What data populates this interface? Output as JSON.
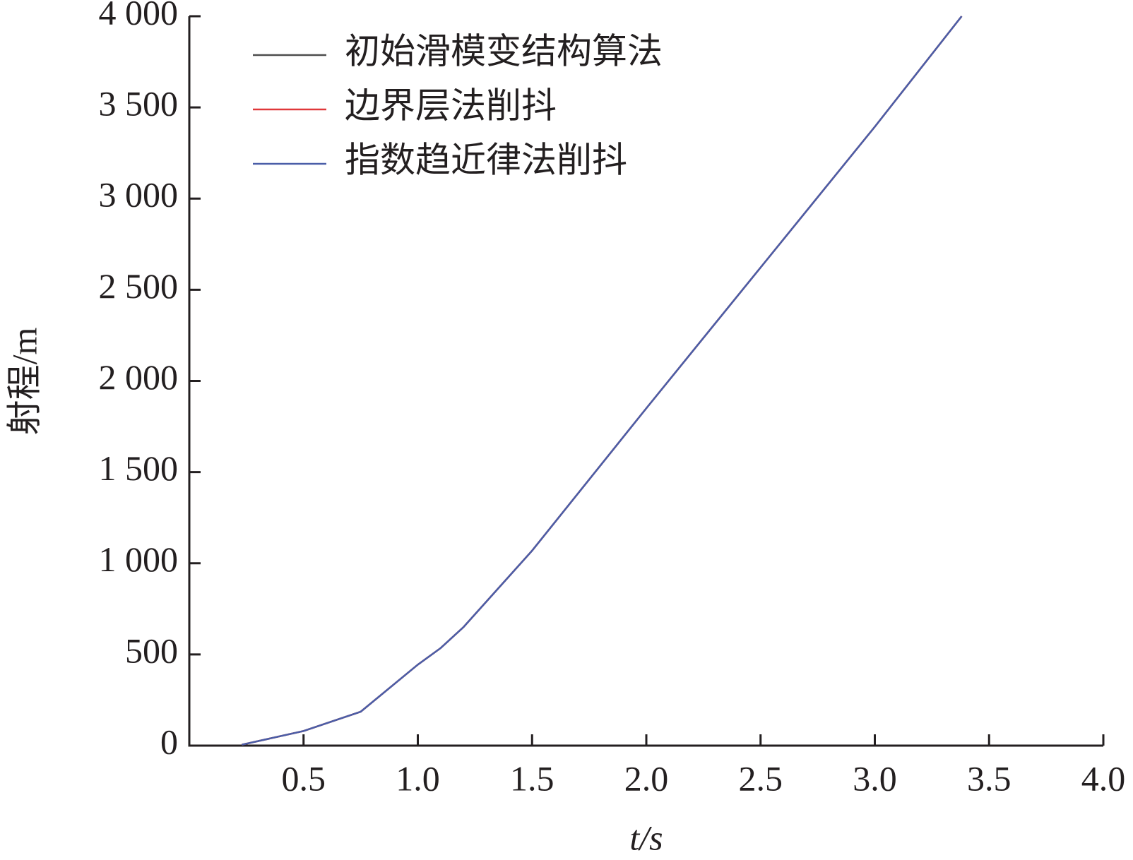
{
  "chart_data": {
    "type": "line",
    "x_label": "t/s",
    "y_label": "射程/m",
    "xlim": [
      0,
      4
    ],
    "ylim": [
      0,
      4000
    ],
    "xticks": [
      0.5,
      {
        "value": 1,
        "label": "1.0"
      },
      1.5,
      {
        "value": 2,
        "label": "2.0"
      },
      2.5,
      {
        "value": 3,
        "label": "3.0"
      },
      3.5,
      {
        "value": 4,
        "label": "4.0"
      }
    ],
    "yticks": [
      0,
      500,
      {
        "value": 1000,
        "label": "1 000"
      },
      {
        "value": 1500,
        "label": "1 500"
      },
      {
        "value": 2000,
        "label": "2 000"
      },
      {
        "value": 2500,
        "label": "2 500"
      },
      {
        "value": 3000,
        "label": "3 000"
      },
      {
        "value": 3500,
        "label": "3 500"
      },
      {
        "value": 4000,
        "label": "4 000"
      }
    ],
    "grid": false,
    "legend": "upper left",
    "x": [
      0.23,
      0.5,
      0.75,
      1.0,
      1.1,
      1.2,
      1.5,
      2.0,
      2.5,
      3.0,
      3.38
    ],
    "series": [
      {
        "name": "初始滑模变结构算法",
        "color": "#4d4d4d",
        "values": [
          5,
          80,
          186,
          444,
          535,
          650,
          1069,
          1850,
          2622,
          3394,
          4000
        ]
      },
      {
        "name": "边界层法削抖",
        "color": "#e0383a",
        "values": [
          5,
          80,
          186,
          444,
          535,
          650,
          1069,
          1850,
          2622,
          3394,
          4000
        ]
      },
      {
        "name": "指数趋近律法削抖",
        "color": "#4a5ea8",
        "values": [
          5,
          80,
          186,
          444,
          535,
          650,
          1069,
          1850,
          2622,
          3394,
          4000
        ]
      }
    ]
  }
}
